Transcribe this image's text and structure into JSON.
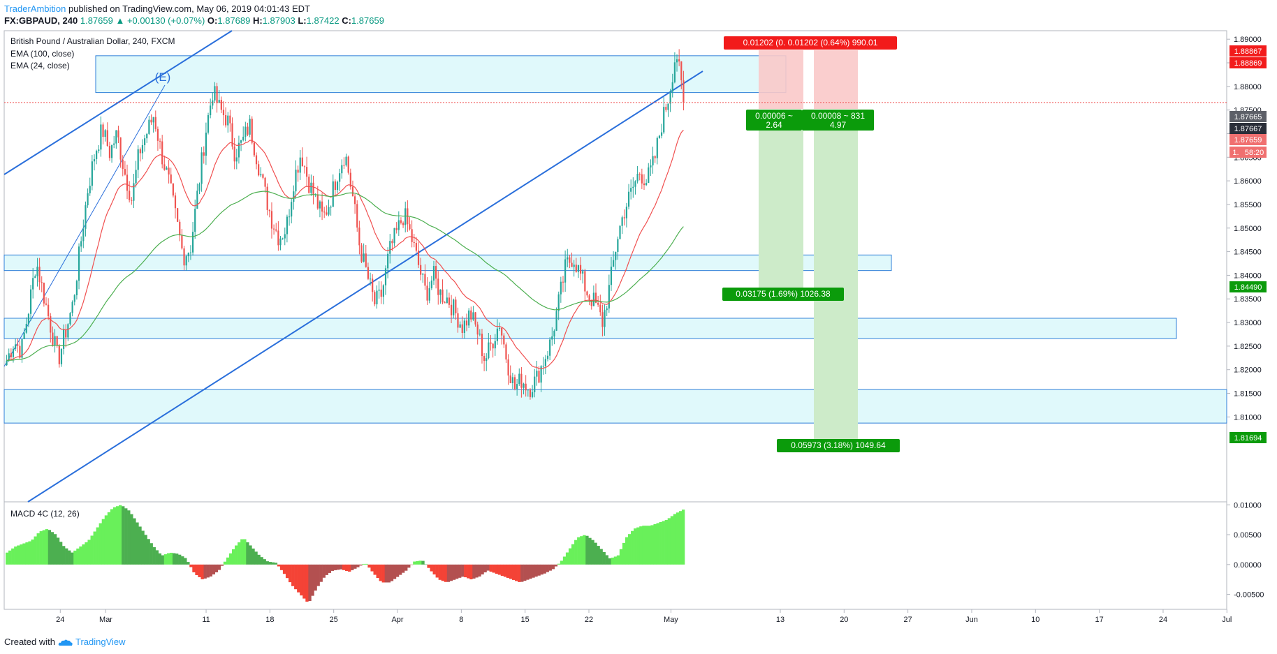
{
  "header": {
    "author": "TraderAmbition",
    "published": "published on TradingView.com, May 06, 2019 04:01:43 EDT",
    "symbol": "FX:GBPAUD, 240",
    "last": "1.87659",
    "change": "▲ +0.00130 (+0.07%)",
    "o_label": "O:",
    "o": "1.87689",
    "h_label": "H:",
    "h": "1.87903",
    "l_label": "L:",
    "l": "1.87422",
    "c_label": "C:",
    "c": "1.87659"
  },
  "legend": {
    "title": "British Pound / Australian Dollar, 240, FXCM",
    "ema100": "EMA (100, close)",
    "ema24": "EMA (24, close)",
    "macd": "MACD 4C (12, 26)"
  },
  "footer": {
    "created": "Created with",
    "brand": "TradingView"
  },
  "colors": {
    "up": "#26a69a",
    "down": "#ef5350",
    "ema24": "#f05050",
    "ema100": "#4caf50",
    "zone_fill": "#e0f9fb",
    "zone_stroke": "#2f7fd8",
    "trend": "#2a6fdb",
    "macd_up_light": "#69f05a",
    "macd_up_dark": "#4caf50",
    "macd_dn_light": "#f44336",
    "macd_dn_dark": "#b35050",
    "target_green": "#0b9b0b",
    "stop_red": "#f21b1b"
  },
  "chart_data": [
    {
      "type": "candlestick",
      "title": "British Pound / Australian Dollar, 240, FXCM",
      "ylim": [
        1.8068,
        1.8918
      ],
      "y_ticks": [
        "1.89000",
        "1.88500",
        "1.88000",
        "1.87500",
        "1.87000",
        "1.86500",
        "1.86000",
        "1.85500",
        "1.85000",
        "1.84500",
        "1.84000",
        "1.83500",
        "1.83000",
        "1.82500",
        "1.82000",
        "1.81500",
        "1.81000"
      ],
      "x_ticks": [
        "24",
        "Mar",
        "11",
        "18",
        "25",
        "Apr",
        "8",
        "15",
        "22",
        "May",
        "13",
        "20",
        "27",
        "Jun",
        "10",
        "17",
        "24",
        "Jul"
      ],
      "series": [
        {
          "name": "EMA (100, close)",
          "type": "line"
        },
        {
          "name": "EMA (24, close)",
          "type": "line"
        }
      ],
      "price_path": [
        1.822,
        1.826,
        1.824,
        1.833,
        1.843,
        1.836,
        1.829,
        1.822,
        1.828,
        1.834,
        1.846,
        1.858,
        1.866,
        1.871,
        1.866,
        1.87,
        1.862,
        1.856,
        1.866,
        1.87,
        1.874,
        1.866,
        1.86,
        1.852,
        1.844,
        1.846,
        1.858,
        1.87,
        1.879,
        1.875,
        1.873,
        1.866,
        1.868,
        1.872,
        1.865,
        1.858,
        1.852,
        1.848,
        1.85,
        1.86,
        1.866,
        1.86,
        1.856,
        1.852,
        1.856,
        1.862,
        1.866,
        1.857,
        1.846,
        1.84,
        1.834,
        1.836,
        1.845,
        1.849,
        1.853,
        1.848,
        1.842,
        1.836,
        1.84,
        1.836,
        1.835,
        1.832,
        1.829,
        1.832,
        1.828,
        1.822,
        1.826,
        1.83,
        1.822,
        1.816,
        1.818,
        1.816,
        1.818,
        1.822,
        1.826,
        1.834,
        1.842,
        1.844,
        1.84,
        1.836,
        1.834,
        1.83,
        1.838,
        1.848,
        1.854,
        1.858,
        1.862,
        1.86,
        1.864,
        1.872,
        1.878,
        1.8876,
        1.8766
      ],
      "zones": [
        {
          "from": 1.8787,
          "to": 1.8865
        },
        {
          "from": 1.841,
          "to": 1.8443
        },
        {
          "from": 1.8266,
          "to": 1.8309
        },
        {
          "from": 1.8087,
          "to": 1.8158
        }
      ],
      "annotations": [
        {
          "text": "(E)"
        },
        {
          "text": "0.01202 (0. 0.01202 (0.64%) 990.01"
        },
        {
          "text": "0.00006 ~",
          "text2": "2.64"
        },
        {
          "text": "0.00008 ~ 831",
          "text2": "4.97"
        },
        {
          "text": "0.03175 (1.69%) 1026.38"
        },
        {
          "text": "0.05973 (3.18%) 1049.64"
        }
      ],
      "price_labels": [
        {
          "text": "1.88867",
          "bg": "#f21b1b"
        },
        {
          "text": "1.88869",
          "bg": "#f21b1b"
        },
        {
          "text": "1.87665",
          "bg": "#5d6068"
        },
        {
          "text": "1.87667",
          "bg": "#2a2e39"
        },
        {
          "text": "1.87659",
          "bg": "#f07070"
        },
        {
          "text": "1.",
          "bg": "#f07070"
        },
        {
          "text": "58:20",
          "bg": "#f07070"
        },
        {
          "text": "1.84490",
          "bg": "#0b9b0b"
        },
        {
          "text": "1.81694",
          "bg": "#0b9b0b"
        }
      ]
    },
    {
      "type": "histogram",
      "title": "MACD 4C (12, 26)",
      "ylim": [
        -0.0075,
        0.0105
      ],
      "y_ticks": [
        "0.01000",
        "0.00500",
        "0.00000",
        "-0.00500"
      ],
      "path": [
        0.002,
        0.003,
        0.0035,
        0.004,
        0.0055,
        0.006,
        0.005,
        0.003,
        0.002,
        0.003,
        0.004,
        0.006,
        0.008,
        0.0095,
        0.01,
        0.009,
        0.007,
        0.005,
        0.003,
        0.0015,
        0.002,
        0.0018,
        0.001,
        -0.0015,
        -0.0025,
        -0.002,
        -0.001,
        0.001,
        0.003,
        0.0045,
        0.003,
        0.0015,
        0.0005,
        0.0003,
        -0.0015,
        -0.0035,
        -0.005,
        -0.0065,
        -0.004,
        -0.002,
        -0.001,
        -0.0008,
        -0.0012,
        -0.0005,
        0.0003,
        -0.0015,
        -0.003,
        -0.003,
        -0.002,
        -0.001,
        0.0005,
        0.0007,
        -0.001,
        -0.0025,
        -0.003,
        -0.0025,
        -0.002,
        -0.0025,
        -0.002,
        -0.001,
        -0.0015,
        -0.002,
        -0.0025,
        -0.003,
        -0.0025,
        -0.002,
        -0.0015,
        -0.0008,
        0.0005,
        0.0025,
        0.0045,
        0.005,
        0.004,
        0.0025,
        0.001,
        0.0015,
        0.0045,
        0.006,
        0.0065,
        0.0065,
        0.007,
        0.0075,
        0.0085,
        0.0092
      ]
    }
  ]
}
